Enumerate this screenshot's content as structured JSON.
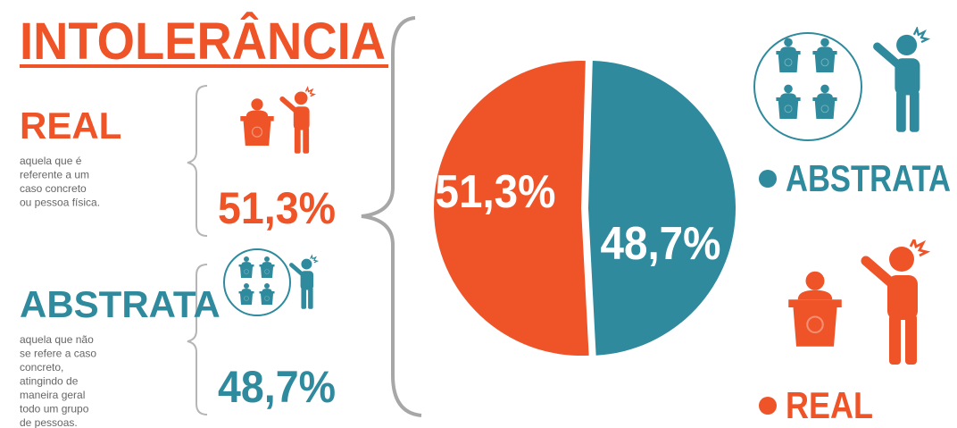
{
  "chart_data": {
    "type": "pie",
    "title": "INTOLERÂNCIA",
    "categories": [
      "REAL",
      "ABSTRATA"
    ],
    "values": [
      51.3,
      48.7
    ],
    "value_labels": [
      "51,3%",
      "48,7%"
    ],
    "colors": [
      "#ee5428",
      "#2e8a9c"
    ],
    "descriptions": [
      [
        "aquela que é",
        "referente a um",
        "caso concreto",
        "ou pessoa física."
      ],
      [
        "aquela que não",
        "se refere a caso",
        "concreto,",
        "atingindo de",
        "maneira geral",
        "todo um grupo",
        "de pessoas."
      ]
    ]
  }
}
